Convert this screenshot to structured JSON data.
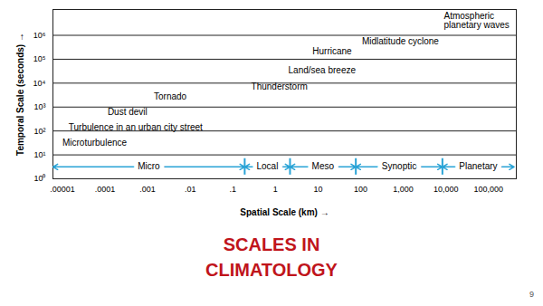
{
  "chart_data": {
    "type": "text",
    "title": "SCALES IN CLIMATOLOGY",
    "footer": "9",
    "xlabel": "Spatial Scale (km)",
    "ylabel": "Temporal Scale (seconds)",
    "log": true,
    "grid": "y",
    "color": "#29a3d6",
    "xlim": [
      6e-06,
      450000
    ],
    "ylim": [
      1,
      12000000
    ],
    "xticks": [
      {
        "value": 1e-05,
        "label": ".00001"
      },
      {
        "value": 0.0001,
        "label": ".0001"
      },
      {
        "value": 0.001,
        "label": ".001"
      },
      {
        "value": 0.01,
        "label": ".01"
      },
      {
        "value": 0.1,
        "label": ".1"
      },
      1,
      10,
      100,
      {
        "value": 1000,
        "label": "1,000"
      },
      {
        "value": 10000,
        "label": "10,000"
      },
      {
        "value": 100000,
        "label": "100,000"
      }
    ],
    "yticks": [
      {
        "value": 1,
        "label": "10⁰"
      },
      {
        "value": 10,
        "label": "10¹"
      },
      {
        "value": 100,
        "label": "10²"
      },
      {
        "value": 1000,
        "label": "10³"
      },
      {
        "value": 10000,
        "label": "10⁴"
      },
      {
        "value": 100000,
        "label": "10⁵"
      },
      {
        "value": 1000000,
        "label": "10⁶"
      }
    ],
    "annotations": [
      {
        "text": "Microturbulence",
        "x": 1e-05,
        "y": 33
      },
      {
        "text": "Turbulence in an urban city street",
        "x": 1.4e-05,
        "y": 135
      },
      {
        "text": "Dust devil",
        "x": 0.000115,
        "y": 600
      },
      {
        "text": "Tornado",
        "x": 0.0014,
        "y": 2600
      },
      {
        "text": "Thunderstorm",
        "x": 0.27,
        "y": 7000
      },
      {
        "text": "Land/sea breeze",
        "x": 2.0,
        "y": 33000
      },
      {
        "text": "Hurricane",
        "x": 7.4,
        "y": 210000
      },
      {
        "text": "Midlatitude cyclone",
        "x": 107,
        "y": 550000
      },
      {
        "text": "Atmospheric\nplanetary waves",
        "x": 9000,
        "y": 4000000
      }
    ],
    "scale_bands": [
      {
        "name": "Micro",
        "from": 6e-06,
        "to": 0.19
      },
      {
        "name": "Local",
        "from": 0.19,
        "to": 2.2
      },
      {
        "name": "Meso",
        "from": 2.2,
        "to": 77
      },
      {
        "name": "Synoptic",
        "from": 77,
        "to": 8300
      },
      {
        "name": "Planetary",
        "from": 8300,
        "to": 400000
      }
    ]
  }
}
